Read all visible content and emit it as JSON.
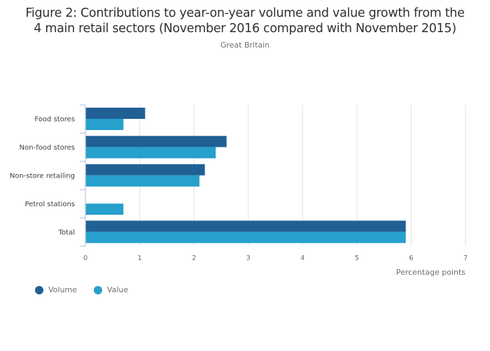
{
  "title_line1": "Figure 2: Contributions to year-on-year volume and value growth from the",
  "title_line2": "4 main retail sectors (November 2016 compared with November 2015)",
  "subtitle": "Great Britain",
  "chart_data": {
    "type": "bar",
    "orientation": "horizontal",
    "title": "Figure 2: Contributions to year-on-year volume and value growth from the 4 main retail sectors (November 2016 compared with November 2015)",
    "subtitle": "Great Britain",
    "categories": [
      "Food stores",
      "Non-food stores",
      "Non-store retailing",
      "Petrol stations",
      "Total"
    ],
    "series": [
      {
        "name": "Volume",
        "color": "#206095",
        "values": [
          1.1,
          2.6,
          2.2,
          0.0,
          5.9
        ]
      },
      {
        "name": "Value",
        "color": "#27a0cc",
        "values": [
          0.7,
          2.4,
          2.1,
          0.7,
          5.9
        ]
      }
    ],
    "xlabel": "Percentage points",
    "ylabel": "",
    "xlim": [
      0,
      7
    ],
    "xticks": [
      "0",
      "1",
      "2",
      "3",
      "4",
      "5",
      "6",
      "7"
    ],
    "grid": true,
    "legend_position": "bottom-left"
  }
}
